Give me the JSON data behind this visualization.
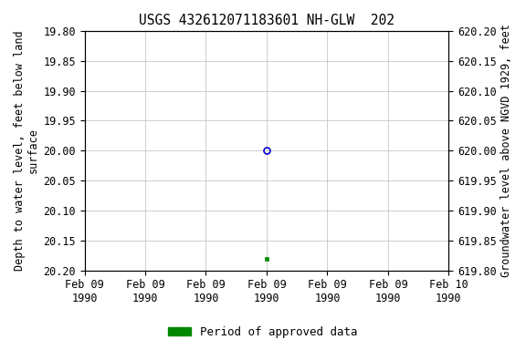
{
  "title": "USGS 432612071183601 NH-GLW  202",
  "ylabel_left": "Depth to water level, feet below land\nsurface",
  "ylabel_right": "Groundwater level above NGVD 1929, feet",
  "ylim_left_top": 19.8,
  "ylim_left_bottom": 20.2,
  "ylim_right_top": 620.2,
  "ylim_right_bottom": 619.8,
  "left_yticks": [
    19.8,
    19.85,
    19.9,
    19.95,
    20.0,
    20.05,
    20.1,
    20.15,
    20.2
  ],
  "right_yticks": [
    620.2,
    620.15,
    620.1,
    620.05,
    620.0,
    619.95,
    619.9,
    619.85,
    619.8
  ],
  "point_blue_x": 3.0,
  "point_blue_y": 20.0,
  "point_green_x": 3.0,
  "point_green_y": 20.18,
  "xlim": [
    0,
    6
  ],
  "xtick_positions": [
    0,
    1,
    2,
    3,
    4,
    5,
    6
  ],
  "xtick_labels": [
    "Feb 09\n1990",
    "Feb 09\n1990",
    "Feb 09\n1990",
    "Feb 09\n1990",
    "Feb 09\n1990",
    "Feb 09\n1990",
    "Feb 10\n1990"
  ],
  "legend_label": "Period of approved data",
  "legend_color": "#008800",
  "bg_color": "#ffffff",
  "grid_color": "#bbbbbb",
  "title_fontsize": 10.5,
  "axis_label_fontsize": 8.5,
  "tick_fontsize": 8.5,
  "legend_fontsize": 9
}
